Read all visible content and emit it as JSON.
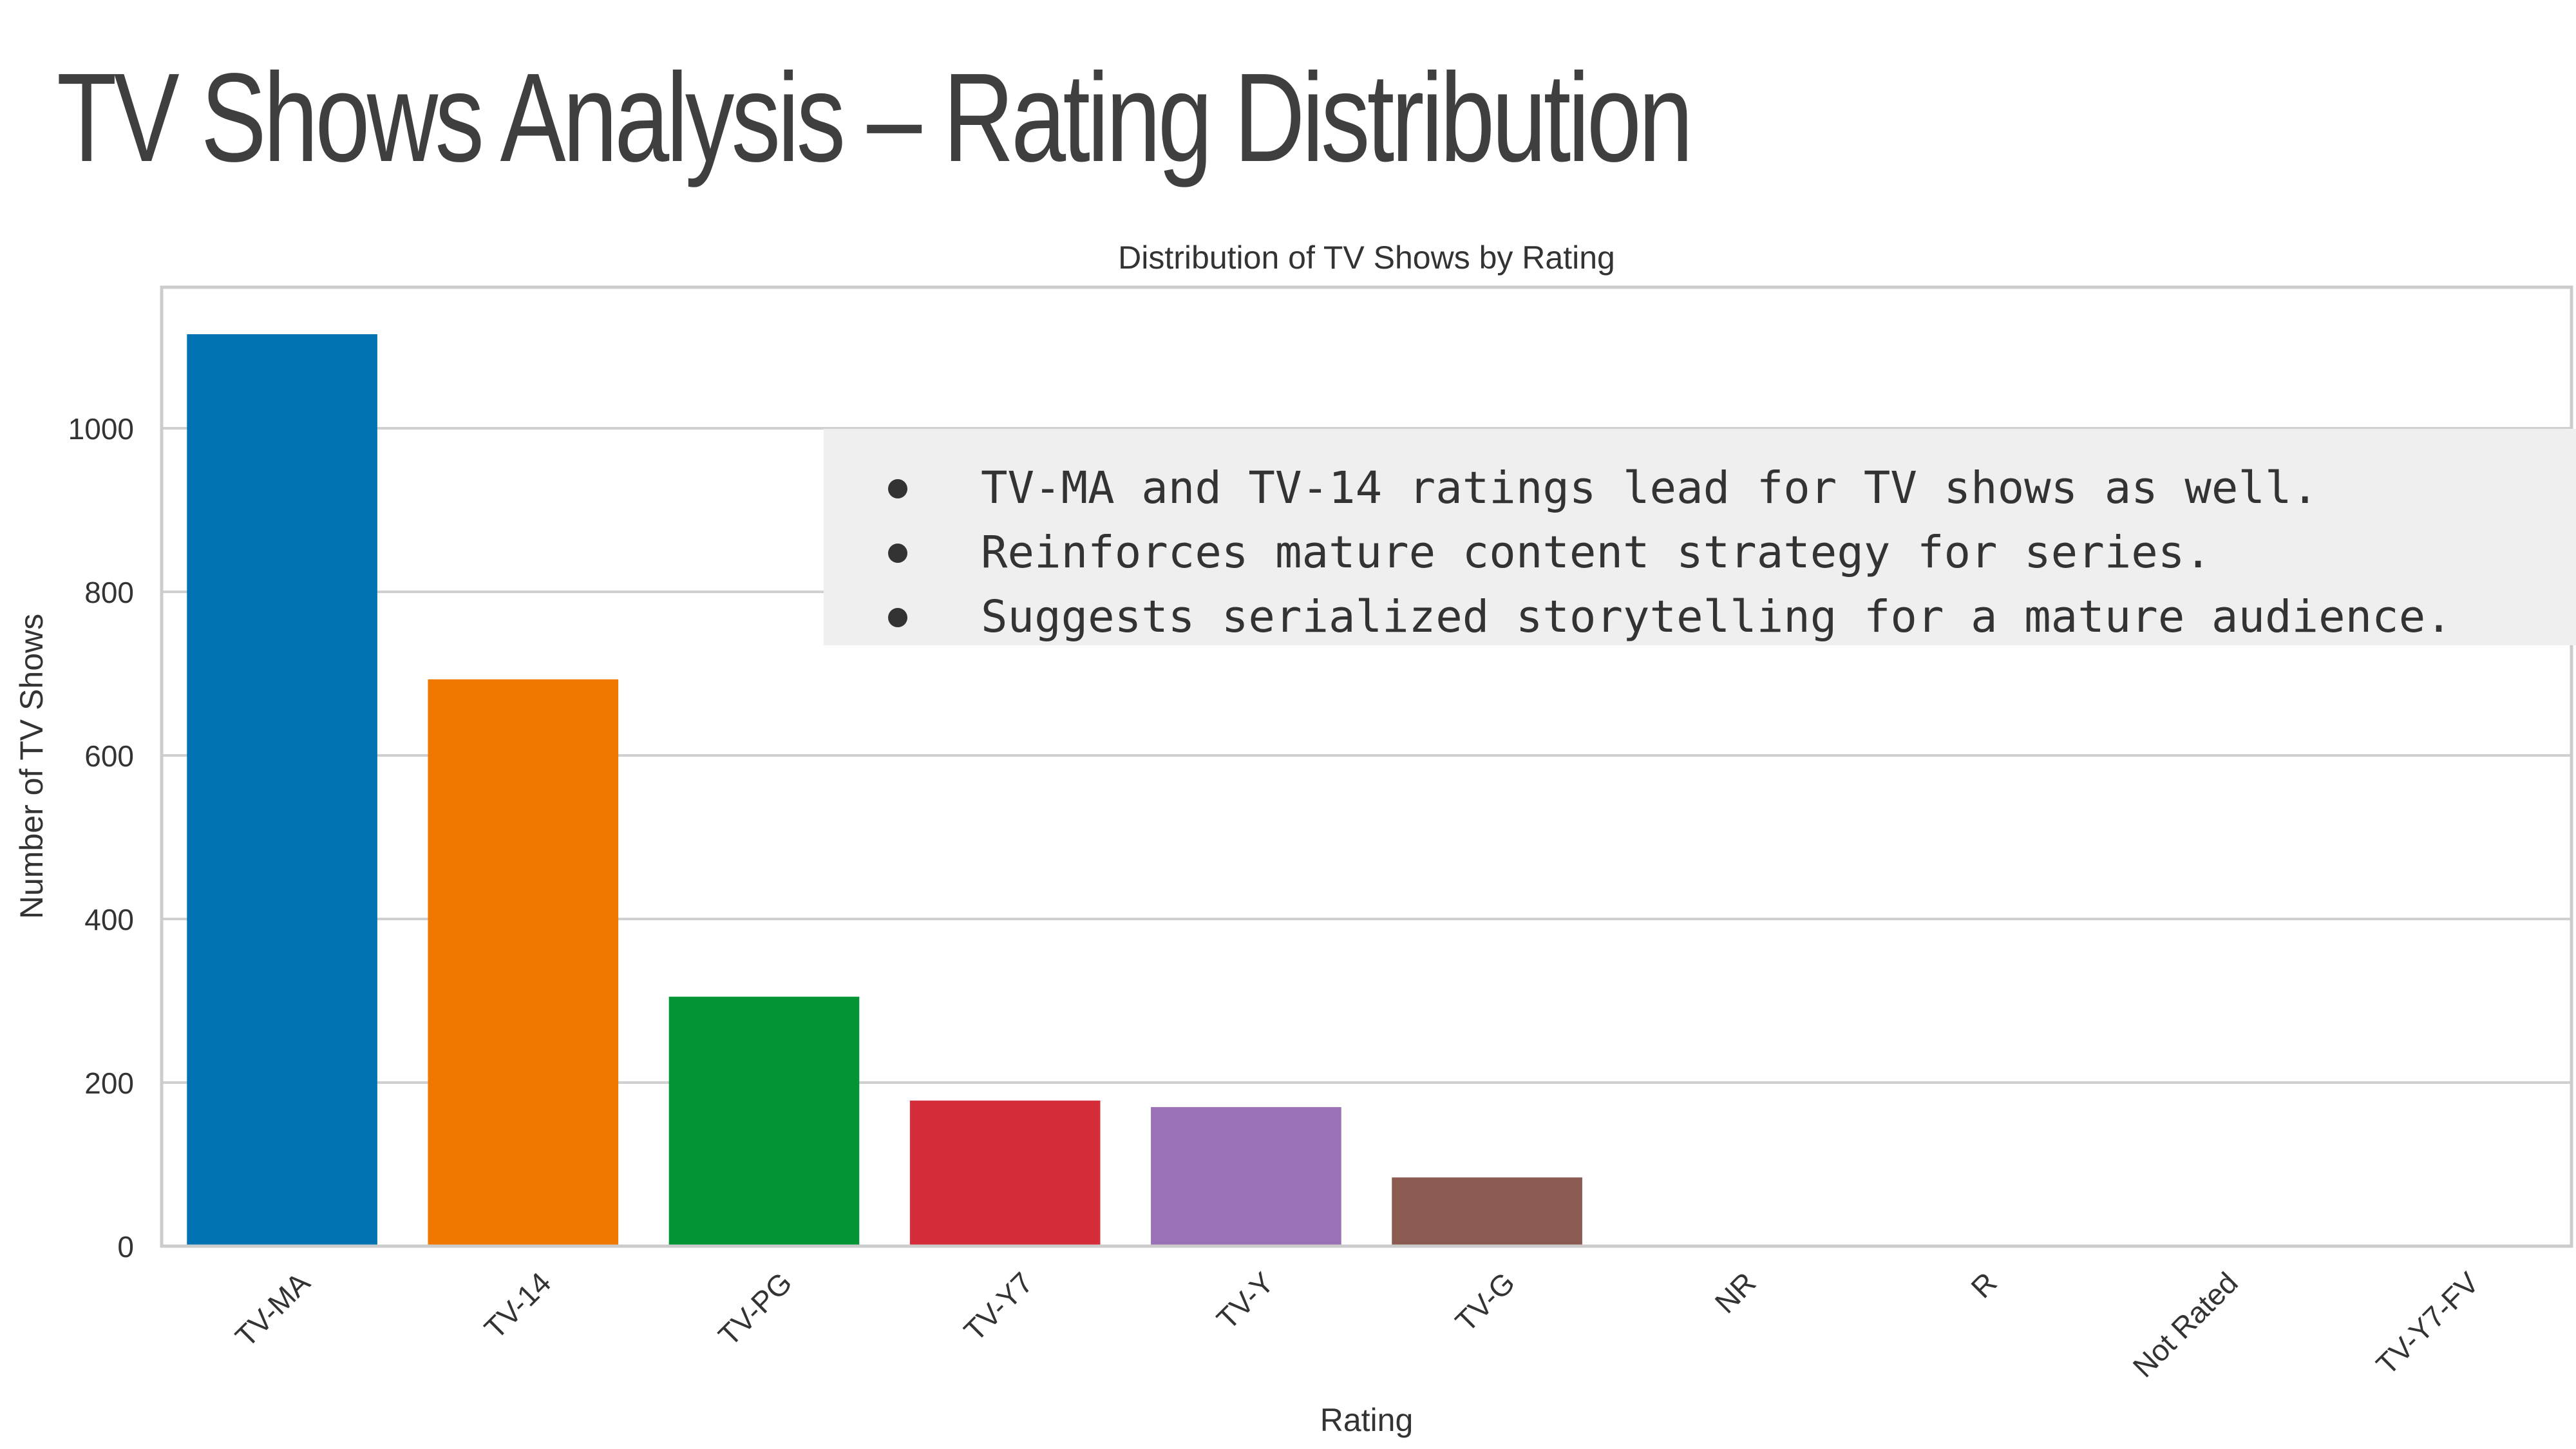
{
  "slide": {
    "title": "TV Shows Analysis – Rating Distribution"
  },
  "notes": {
    "items": [
      "TV-MA and TV-14 ratings lead for TV shows as well.",
      "Reinforces mature content strategy for series.",
      "Suggests serialized storytelling for a mature audience."
    ]
  },
  "chart_data": {
    "type": "bar",
    "title": "Distribution of TV Shows by Rating",
    "xlabel": "Rating",
    "ylabel": "Number of TV Shows",
    "categories": [
      "TV-MA",
      "TV-14",
      "TV-PG",
      "TV-Y7",
      "TV-Y",
      "TV-G",
      "NR",
      "R",
      "Not Rated",
      "TV-Y7-FV"
    ],
    "values": [
      1115,
      693,
      305,
      178,
      170,
      84,
      1,
      1,
      1,
      1
    ],
    "colors": [
      "#0173b2",
      "#f07800",
      "#029435",
      "#d62d3a",
      "#9a70b7",
      "#8b5a50",
      "#e57ac6",
      "#8d8d8d",
      "#c5c74a",
      "#3fb8d1"
    ],
    "yticks": [
      0,
      200,
      400,
      600,
      800,
      1000
    ],
    "ylim": [
      0,
      1170
    ],
    "grid": true
  }
}
